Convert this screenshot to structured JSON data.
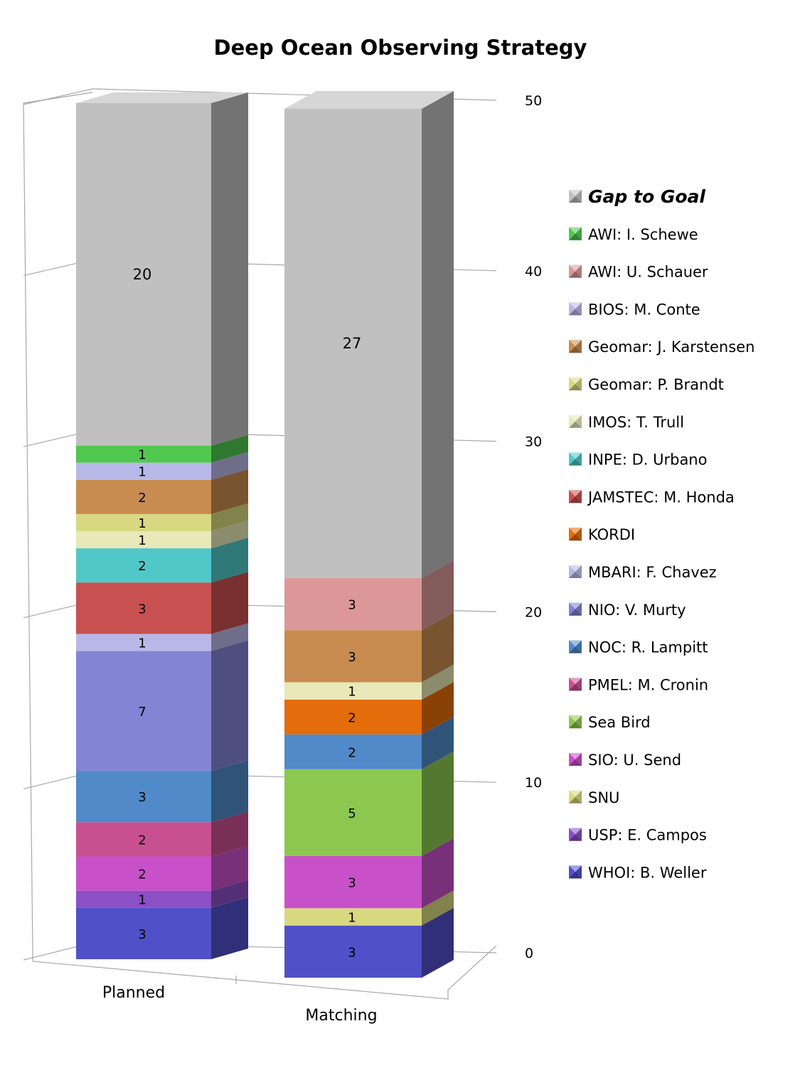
{
  "chart_data": {
    "type": "bar",
    "stacked": true,
    "three_d": true,
    "title": "Deep Ocean Observing Strategy",
    "categories": [
      "Planned",
      "Matching"
    ],
    "ylim": [
      0,
      50
    ],
    "yticks": [
      "0",
      "10",
      "20",
      "30",
      "40",
      "50"
    ],
    "grid": true,
    "legend_position": "right",
    "series": [
      {
        "name": "WHOI: B. Weller",
        "color": "#5050c8",
        "values": [
          3,
          3
        ]
      },
      {
        "name": "USP: E. Campos",
        "color": "#8a50c4",
        "values": [
          1,
          0
        ]
      },
      {
        "name": "SNU",
        "color": "#d8d880",
        "values": [
          0,
          1
        ]
      },
      {
        "name": "SIO: U. Send",
        "color": "#c850c8",
        "values": [
          2,
          3
        ]
      },
      {
        "name": "Sea Bird",
        "color": "#8cc850",
        "values": [
          0,
          5
        ]
      },
      {
        "name": "PMEL: M. Cronin",
        "color": "#c85090",
        "values": [
          2,
          0
        ]
      },
      {
        "name": "NOC: R. Lampitt",
        "color": "#508ac8",
        "values": [
          3,
          2
        ]
      },
      {
        "name": "NIO: V. Murty",
        "color": "#8484d4",
        "values": [
          7,
          0
        ]
      },
      {
        "name": "MBARI: F. Chavez",
        "color": "#b8b8e8",
        "values": [
          1,
          0
        ]
      },
      {
        "name": "KORDI",
        "color": "#e46c0a",
        "values": [
          0,
          2
        ]
      },
      {
        "name": "JAMSTEC: M. Honda",
        "color": "#c85050",
        "values": [
          3,
          0
        ]
      },
      {
        "name": "INPE: D. Urbano",
        "color": "#50c8c8",
        "values": [
          2,
          0
        ]
      },
      {
        "name": "IMOS: T. Trull",
        "color": "#e8e8b8",
        "values": [
          1,
          1
        ]
      },
      {
        "name": "Geomar: P. Brandt",
        "color": "#d8d880",
        "values": [
          1,
          0
        ]
      },
      {
        "name": "Geomar: J. Karstensen",
        "color": "#c88c50",
        "values": [
          2,
          3
        ]
      },
      {
        "name": "BIOS: M. Conte",
        "color": "#b8b8e8",
        "values": [
          1,
          0
        ]
      },
      {
        "name": "AWI: U. Schauer",
        "color": "#dc9898",
        "values": [
          0,
          3
        ]
      },
      {
        "name": "AWI: I. Schewe",
        "color": "#50c850",
        "values": [
          1,
          0
        ]
      },
      {
        "name": "Gap to Goal",
        "color": "#c0c0c0",
        "values": [
          20,
          27
        ]
      }
    ],
    "legend_order": [
      "Gap to Goal",
      "AWI: I. Schewe",
      "AWI: U. Schauer",
      "BIOS: M. Conte",
      "Geomar: J. Karstensen",
      "Geomar: P. Brandt",
      "IMOS: T. Trull",
      "INPE: D. Urbano",
      "JAMSTEC: M. Honda",
      "KORDI",
      "MBARI: F. Chavez",
      "NIO: V. Murty",
      "NOC: R. Lampitt",
      "PMEL: M. Cronin",
      "Sea Bird",
      "SIO: U. Send",
      "SNU",
      "USP: E. Campos",
      "WHOI: B. Weller"
    ],
    "legend_emphasis": "Gap to Goal"
  }
}
